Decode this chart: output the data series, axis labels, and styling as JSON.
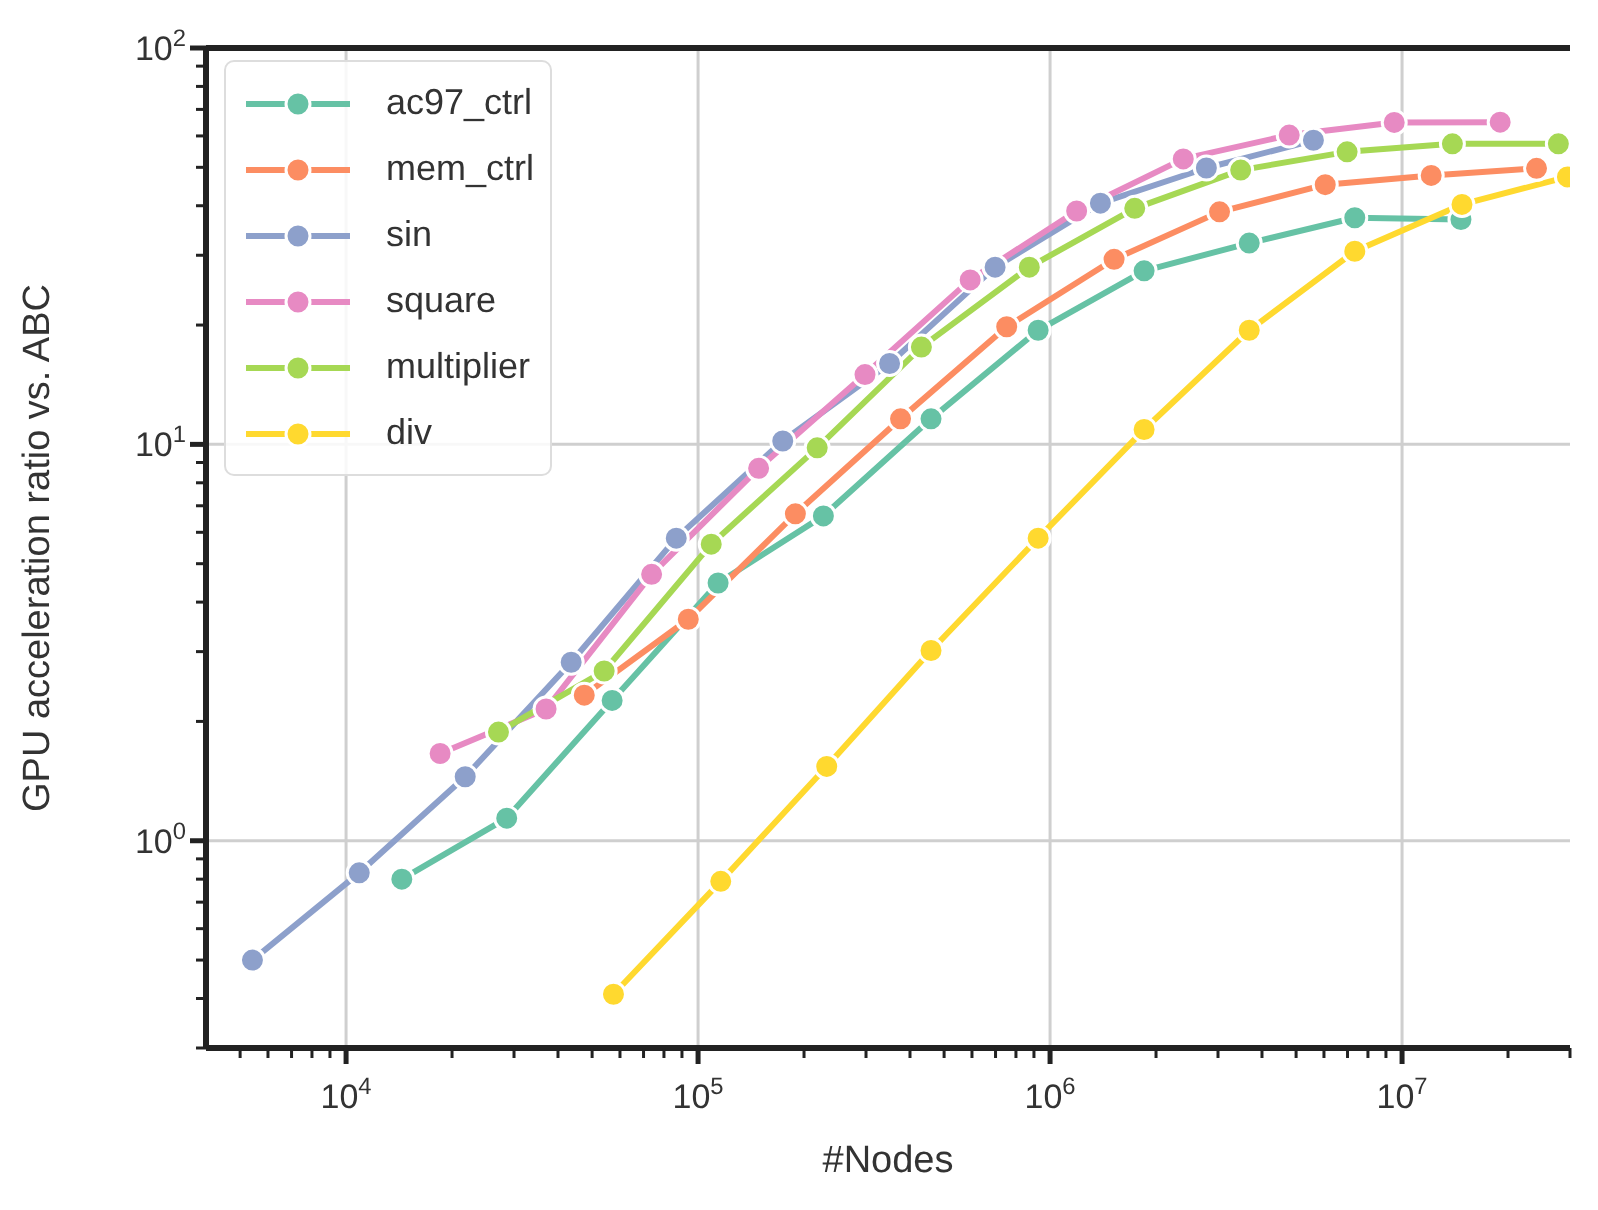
{
  "chart_data": {
    "type": "line",
    "xlabel": "#Nodes",
    "ylabel": "GPU acceleration ratio vs. ABC",
    "log": "xy",
    "grid": true,
    "legend": "top left",
    "marker": "circle",
    "line_style": "solid",
    "xlim": [
      4000,
      30000000
    ],
    "ylim": [
      0.3,
      100
    ],
    "xticks": [
      {
        "value": 5000,
        "label": null
      },
      {
        "value": 6000,
        "label": null
      },
      {
        "value": 7000,
        "label": null
      },
      {
        "value": 8000,
        "label": null
      },
      {
        "value": 9000,
        "label": null
      },
      {
        "value": 10000,
        "label": "10$^{4}$"
      },
      {
        "value": 20000,
        "label": null
      },
      {
        "value": 30000,
        "label": null
      },
      {
        "value": 40000,
        "label": null
      },
      {
        "value": 50000,
        "label": null
      },
      {
        "value": 60000,
        "label": null
      },
      {
        "value": 70000,
        "label": null
      },
      {
        "value": 80000,
        "label": null
      },
      {
        "value": 90000,
        "label": null
      },
      {
        "value": 100000,
        "label": "10$^{5}$"
      },
      {
        "value": 200000,
        "label": null
      },
      {
        "value": 300000,
        "label": null
      },
      {
        "value": 400000,
        "label": null
      },
      {
        "value": 500000,
        "label": null
      },
      {
        "value": 600000,
        "label": null
      },
      {
        "value": 700000,
        "label": null
      },
      {
        "value": 800000,
        "label": null
      },
      {
        "value": 900000,
        "label": null
      },
      {
        "value": 1000000,
        "label": "10$^{6}$"
      },
      {
        "value": 2000000,
        "label": null
      },
      {
        "value": 3000000,
        "label": null
      },
      {
        "value": 4000000,
        "label": null
      },
      {
        "value": 5000000,
        "label": null
      },
      {
        "value": 6000000,
        "label": null
      },
      {
        "value": 7000000,
        "label": null
      },
      {
        "value": 8000000,
        "label": null
      },
      {
        "value": 9000000,
        "label": null
      },
      {
        "value": 10000000,
        "label": "10$^{7}$"
      },
      {
        "value": 20000000,
        "label": null
      },
      {
        "value": 30000000,
        "label": null
      }
    ],
    "yticks": [
      {
        "value": 0.3,
        "label": null
      },
      {
        "value": 0.4,
        "label": null
      },
      {
        "value": 0.5,
        "label": null
      },
      {
        "value": 0.6,
        "label": null
      },
      {
        "value": 0.7,
        "label": null
      },
      {
        "value": 0.8,
        "label": null
      },
      {
        "value": 0.9,
        "label": null
      },
      {
        "value": 1,
        "label": "10$^{0}$"
      },
      {
        "value": 2,
        "label": null
      },
      {
        "value": 3,
        "label": null
      },
      {
        "value": 4,
        "label": null
      },
      {
        "value": 5,
        "label": null
      },
      {
        "value": 6,
        "label": null
      },
      {
        "value": 7,
        "label": null
      },
      {
        "value": 8,
        "label": null
      },
      {
        "value": 9,
        "label": null
      },
      {
        "value": 10,
        "label": "10$^{1}$"
      },
      {
        "value": 20,
        "label": null
      },
      {
        "value": 30,
        "label": null
      },
      {
        "value": 40,
        "label": null
      },
      {
        "value": 50,
        "label": null
      },
      {
        "value": 60,
        "label": null
      },
      {
        "value": 70,
        "label": null
      },
      {
        "value": 80,
        "label": null
      },
      {
        "value": 90,
        "label": null
      },
      {
        "value": 100,
        "label": "10$^{2}$"
      }
    ],
    "series": [
      {
        "name": "ac97_ctrl",
        "color": "#66c2a5",
        "x": [
          14400,
          28600,
          57000,
          114000,
          227000,
          459000,
          925000,
          1850000,
          3680000,
          7340000,
          14700000
        ],
        "values": [
          0.8,
          1.14,
          2.26,
          4.47,
          6.6,
          11.6,
          19.4,
          27.4,
          32.2,
          37.3,
          36.9
        ]
      },
      {
        "name": "mem_ctrl",
        "color": "#fc8d62",
        "x": [
          47500,
          93800,
          189000,
          376000,
          753000,
          1520000,
          3030000,
          6050000,
          12100000,
          24100000
        ],
        "values": [
          2.33,
          3.62,
          6.68,
          11.6,
          19.8,
          29.3,
          38.6,
          45.2,
          47.7,
          49.7
        ]
      },
      {
        "name": "sin",
        "color": "#8da0cb",
        "x": [
          5420,
          10900,
          21800,
          43600,
          86700,
          174000,
          350000,
          698000,
          1390000,
          2780000,
          5600000
        ],
        "values": [
          0.5,
          0.83,
          1.45,
          2.82,
          5.8,
          10.2,
          16,
          28,
          40.6,
          49.8,
          58.5
        ]
      },
      {
        "name": "square",
        "color": "#e78ac3",
        "x": [
          18500,
          37000,
          73800,
          148600,
          298000,
          593000,
          1190000,
          2390000,
          4780000,
          9500000,
          19000000
        ],
        "values": [
          1.66,
          2.15,
          4.7,
          8.7,
          15,
          26,
          38.8,
          52.5,
          60.3,
          64.9,
          65
        ]
      },
      {
        "name": "multiplier",
        "color": "#a6d854",
        "x": [
          27100,
          54100,
          109000,
          218000,
          431000,
          873000,
          1740000,
          3480000,
          6980000,
          13900000,
          27800000
        ],
        "values": [
          1.88,
          2.68,
          5.6,
          9.8,
          17.6,
          28,
          39.4,
          49.2,
          54.7,
          57.3,
          57.3
        ]
      },
      {
        "name": "div",
        "color": "#ffd92f",
        "x": [
          57500,
          116000,
          232000,
          459000,
          925000,
          1850000,
          3680000,
          7340000,
          14800000,
          29500000
        ],
        "values": [
          0.41,
          0.79,
          1.54,
          3.02,
          5.8,
          10.9,
          19.4,
          30.7,
          40.3,
          47.3
        ]
      }
    ]
  }
}
